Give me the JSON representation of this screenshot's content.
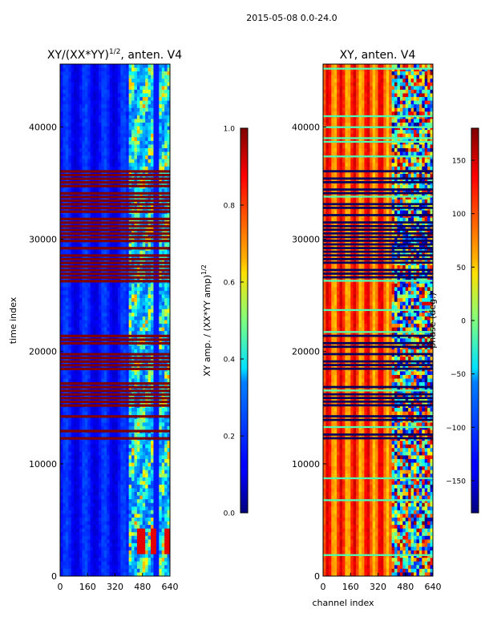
{
  "figure": {
    "suptitle": "2015-05-08 0.0-24.0"
  },
  "chart_data": [
    {
      "type": "heatmap",
      "title": "XY/(XX*YY)^{1/2}, anten. V4",
      "title_main": "XY/(XX*YY)",
      "title_sup": "1/2",
      "title_tail": ", anten. V4",
      "xlabel": "",
      "ylabel": "time index",
      "xlim": [
        0,
        640
      ],
      "ylim": [
        0,
        45600
      ],
      "xticks": [
        0,
        160,
        320,
        480,
        640
      ],
      "yticks": [
        0,
        10000,
        20000,
        30000,
        40000
      ],
      "colorbar": {
        "label": "XY amp. / (XX*YY amp)^{1/2}",
        "label_main": "XY amp. / (XX*YY amp)",
        "label_sup": "1/2",
        "range": [
          0.0,
          1.0
        ],
        "ticks": [
          0.0,
          0.2,
          0.4,
          0.6,
          0.8,
          1.0
        ],
        "tick_labels": [
          "0.0",
          "0.2",
          "0.4",
          "0.6",
          "0.8",
          "1.0"
        ]
      },
      "colormap": "jet",
      "flagged_time_bands": [
        [
          12000,
          13000
        ],
        [
          13600,
          14400
        ],
        [
          14700,
          17200
        ],
        [
          17500,
          21500
        ],
        [
          26200,
          36000
        ]
      ],
      "notes": "mostly low amplitude (~0.1-0.2) for channels 0-400; higher, structured amplitude for channels 400-640; high-amplitude blocks near channels 420-640 for time index ~2000-4000"
    },
    {
      "type": "heatmap",
      "title": "XY, anten. V4",
      "xlabel": "channel index",
      "ylabel": "",
      "xlim": [
        0,
        640
      ],
      "ylim": [
        0,
        45600
      ],
      "xticks": [
        0,
        160,
        320,
        480,
        640
      ],
      "yticks": [
        0,
        10000,
        20000,
        30000,
        40000
      ],
      "colorbar": {
        "label": "phase (deg.)",
        "range": [
          -180,
          180
        ],
        "ticks": [
          -150,
          -100,
          -50,
          0,
          50,
          100,
          150
        ],
        "tick_labels": [
          "−150",
          "−100",
          "−50",
          "0",
          "50",
          "100",
          "150"
        ]
      },
      "colormap": "jet",
      "notes": "phase ~60-150 deg across channels 0-400 with vertical striping; varied phase beyond channel ~400; many flagged (dark) time rows"
    }
  ],
  "colors": {
    "jet_low": "#00007f",
    "jet_high": "#7f0000",
    "flag": "#800000",
    "flag_dark": "#000060"
  }
}
